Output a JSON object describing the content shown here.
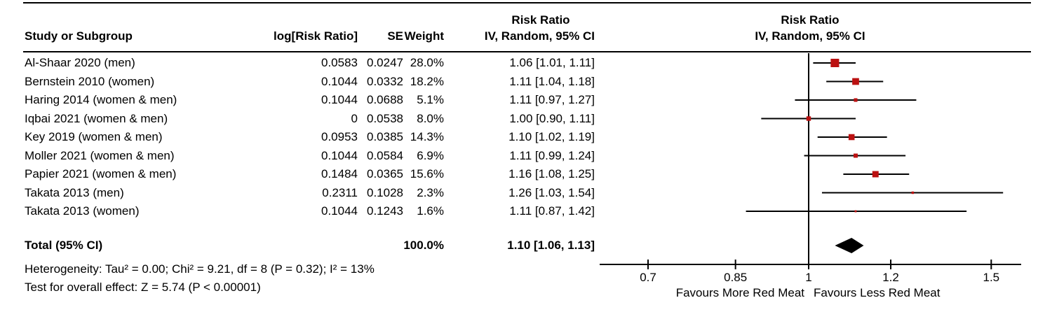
{
  "table_headers": {
    "study": "Study or Subgroup",
    "log_rr": "log[Risk Ratio]",
    "se": "SE",
    "weight": "Weight",
    "effect_header_line1": "Risk Ratio",
    "effect_header_line2": "IV, Random, 95% CI"
  },
  "plot_headers": {
    "line1": "Risk Ratio",
    "line2": "IV, Random, 95% CI"
  },
  "chart_data": {
    "type": "forest",
    "effect_measure": "Risk Ratio",
    "model": "IV, Random, 95% CI",
    "x_scale": "log",
    "axis_ticks": [
      0.7,
      0.85,
      1,
      1.2,
      1.5
    ],
    "axis_tick_labels": [
      "0.7",
      "0.85",
      "1",
      "1.2",
      "1.5"
    ],
    "axis_range": [
      0.63,
      1.61
    ],
    "favours_left": "Favours More Red Meat",
    "favours_right": "Favours Less Red Meat",
    "marker_color": "#bb1111",
    "diamond_color": "#000000",
    "studies": [
      {
        "name": "Al-Shaar 2020 (men)",
        "log_rr": "0.0583",
        "se": "0.0247",
        "weight": "28.0%",
        "weight_pct": 28.0,
        "ci_text": "1.06 [1.01, 1.11]",
        "rr": 1.06,
        "lo": 1.01,
        "hi": 1.11
      },
      {
        "name": "Bernstein 2010 (women)",
        "log_rr": "0.1044",
        "se": "0.0332",
        "weight": "18.2%",
        "weight_pct": 18.2,
        "ci_text": "1.11 [1.04, 1.18]",
        "rr": 1.11,
        "lo": 1.04,
        "hi": 1.18
      },
      {
        "name": "Haring 2014 (women & men)",
        "log_rr": "0.1044",
        "se": "0.0688",
        "weight": "5.1%",
        "weight_pct": 5.1,
        "ci_text": "1.11 [0.97, 1.27]",
        "rr": 1.11,
        "lo": 0.97,
        "hi": 1.27
      },
      {
        "name": "Iqbai 2021 (women & men)",
        "log_rr": "0",
        "se": "0.0538",
        "weight": "8.0%",
        "weight_pct": 8.0,
        "ci_text": "1.00 [0.90, 1.11]",
        "rr": 1.0,
        "lo": 0.9,
        "hi": 1.11
      },
      {
        "name": "Key 2019 (women & men)",
        "log_rr": "0.0953",
        "se": "0.0385",
        "weight": "14.3%",
        "weight_pct": 14.3,
        "ci_text": "1.10 [1.02, 1.19]",
        "rr": 1.1,
        "lo": 1.02,
        "hi": 1.19
      },
      {
        "name": "Moller 2021 (women & men)",
        "log_rr": "0.1044",
        "se": "0.0584",
        "weight": "6.9%",
        "weight_pct": 6.9,
        "ci_text": "1.11 [0.99, 1.24]",
        "rr": 1.11,
        "lo": 0.99,
        "hi": 1.24
      },
      {
        "name": "Papier 2021 (women & men)",
        "log_rr": "0.1484",
        "se": "0.0365",
        "weight": "15.6%",
        "weight_pct": 15.6,
        "ci_text": "1.16 [1.08, 1.25]",
        "rr": 1.16,
        "lo": 1.08,
        "hi": 1.25
      },
      {
        "name": "Takata 2013 (men)",
        "log_rr": "0.2311",
        "se": "0.1028",
        "weight": "2.3%",
        "weight_pct": 2.3,
        "ci_text": "1.26 [1.03, 1.54]",
        "rr": 1.26,
        "lo": 1.03,
        "hi": 1.54
      },
      {
        "name": "Takata 2013 (women)",
        "log_rr": "0.1044",
        "se": "0.1243",
        "weight": "1.6%",
        "weight_pct": 1.6,
        "ci_text": "1.11 [0.87, 1.42]",
        "rr": 1.11,
        "lo": 0.87,
        "hi": 1.42
      }
    ],
    "total": {
      "label": "Total (95% CI)",
      "weight": "100.0%",
      "ci_text": "1.10 [1.06, 1.13]",
      "rr": 1.1,
      "lo": 1.06,
      "hi": 1.13
    },
    "heterogeneity": "Heterogeneity: Tau² = 0.00; Chi² = 9.21, df = 8 (P = 0.32); I² = 13%",
    "overall_effect": "Test for overall effect: Z = 5.74 (P < 0.00001)"
  }
}
